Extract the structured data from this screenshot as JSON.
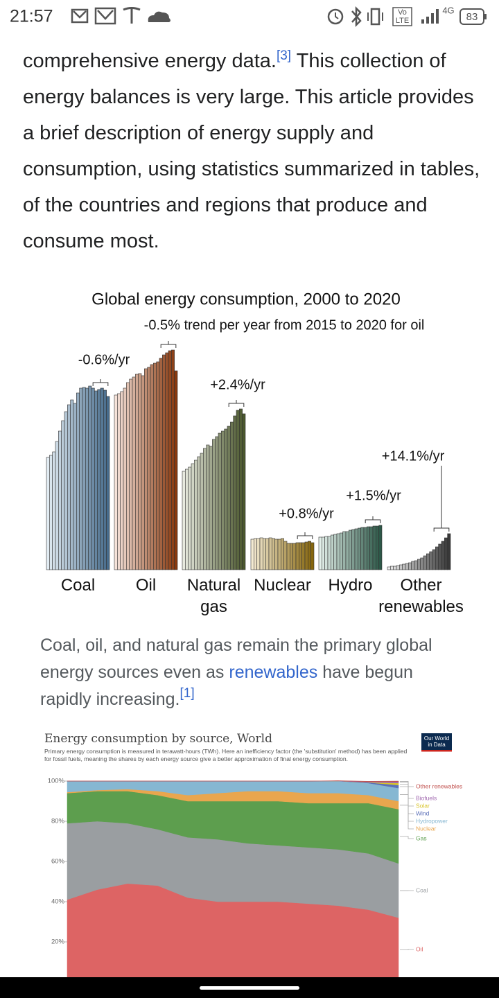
{
  "status_bar": {
    "time": "21:57",
    "volte": [
      "Vo",
      "LTE"
    ],
    "network": "4G",
    "battery": "83"
  },
  "article": {
    "before": "comprehensive energy data.",
    "ref": "[3]",
    "after": " This collection of energy balances is very large. This article provides a brief description of energy supply and consumption, using statistics summarized in tables, of the countries and regions that produce and consume most."
  },
  "caption": {
    "before": "Coal, oil, and natural gas remain the primary global energy sources even as ",
    "link": "renewables",
    "after": " have begun rapidly increasing.",
    "ref": "[1]"
  },
  "chart_data": [
    {
      "type": "bar",
      "title": "Global energy consumption, 2000 to 2020",
      "annotations": [
        "-0.6%/yr",
        "-0.5% trend per year from 2015 to 2020 for oil",
        "+2.4%/yr",
        "+0.8%/yr",
        "+1.5%/yr",
        "+14.1%/yr"
      ],
      "series": [
        {
          "name": "Coal",
          "colors": [
            "#e2ecf3",
            "#476c8c"
          ],
          "values": [
            162,
            165,
            170,
            185,
            200,
            215,
            228,
            238,
            245,
            240,
            255,
            262,
            263,
            262,
            265,
            262,
            258,
            260,
            262,
            259,
            250
          ]
        },
        {
          "name": "Oil",
          "colors": [
            "#f6e3da",
            "#87380e"
          ],
          "values": [
            252,
            254,
            257,
            262,
            270,
            275,
            278,
            282,
            283,
            280,
            290,
            292,
            296,
            298,
            300,
            305,
            310,
            313,
            316,
            317,
            287
          ]
        },
        {
          "name": "Natural gas",
          "colors": [
            "#e8eadf",
            "#4a572d"
          ],
          "values": [
            142,
            145,
            148,
            153,
            158,
            163,
            168,
            175,
            180,
            178,
            188,
            192,
            197,
            200,
            203,
            207,
            213,
            222,
            230,
            232,
            225
          ]
        },
        {
          "name": "Nuclear",
          "colors": [
            "#f3ead2",
            "#86660e"
          ],
          "values": [
            44,
            45,
            45,
            46,
            45,
            45,
            46,
            45,
            44,
            44,
            45,
            41,
            38,
            38,
            38,
            39,
            39,
            39,
            40,
            41,
            39
          ]
        },
        {
          "name": "Hydro",
          "colors": [
            "#e3f0ea",
            "#2d5848"
          ],
          "values": [
            47,
            47,
            48,
            48,
            50,
            51,
            52,
            53,
            55,
            55,
            57,
            58,
            59,
            60,
            61,
            61,
            62,
            62,
            63,
            63,
            64
          ]
        },
        {
          "name": "Other renewables",
          "colors": [
            "#ececec",
            "#383838"
          ],
          "values": [
            4,
            5,
            5,
            6,
            7,
            8,
            9,
            10,
            12,
            13,
            15,
            17,
            20,
            23,
            26,
            29,
            33,
            37,
            41,
            46,
            52
          ]
        }
      ]
    },
    {
      "type": "area",
      "stacked": true,
      "title": "Energy consumption by source, World",
      "subtitle": "Primary energy consumption is measured in terawatt-hours (TWh). Here an inefficiency factor (the 'substitution' method) has been applied for fossil fuels, meaning the shares by each energy source give a better approximation of final energy consumption.",
      "logo": [
        "Our World",
        "in Data"
      ],
      "categories": [
        null,
        null,
        null,
        null,
        null,
        null,
        null,
        null,
        null,
        null,
        null,
        null
      ],
      "ylim": [
        0,
        100
      ],
      "yticks": [
        {
          "value": 20,
          "label": "20%"
        },
        {
          "value": 40,
          "label": "40%"
        },
        {
          "value": 60,
          "label": "60%"
        },
        {
          "value": 80,
          "label": "80%"
        },
        {
          "value": 100,
          "label": "100%"
        }
      ],
      "series": [
        {
          "name": "Oil",
          "color": "#dd6464",
          "values": [
            41,
            46,
            49,
            48,
            42,
            40,
            40,
            40,
            39,
            38,
            36,
            32
          ]
        },
        {
          "name": "Coal",
          "color": "#9a9ea1",
          "values": [
            38,
            34,
            30,
            28,
            30,
            31,
            29,
            28,
            28,
            28,
            28,
            27
          ]
        },
        {
          "name": "Gas",
          "color": "#5d9e4e",
          "values": [
            15,
            15,
            16,
            17,
            18,
            19,
            21,
            22,
            22,
            23,
            25,
            27
          ]
        },
        {
          "name": "Nuclear",
          "color": "#e9a64e",
          "values": [
            0.5,
            0.5,
            1,
            2,
            3,
            4,
            5,
            5,
            5,
            5,
            4,
            4
          ]
        },
        {
          "name": "Hydropower",
          "color": "#86b7d2",
          "values": [
            5.5,
            4.5,
            4,
            5,
            7,
            6,
            5,
            5,
            6,
            6,
            6,
            6.5
          ]
        },
        {
          "name": "Wind",
          "color": "#5b70b8",
          "values": [
            0,
            0,
            0,
            0,
            0,
            0,
            0,
            0,
            0,
            0,
            0.3,
            1.5
          ]
        },
        {
          "name": "Solar",
          "color": "#d8c42a",
          "values": [
            0,
            0,
            0,
            0,
            0,
            0,
            0,
            0,
            0,
            0,
            0.1,
            1
          ]
        },
        {
          "name": "Biofuels",
          "color": "#a26ab0",
          "values": [
            0,
            0,
            0,
            0,
            0,
            0,
            0,
            0,
            0,
            0.1,
            0.3,
            0.7
          ]
        },
        {
          "name": "Other renewables",
          "color": "#c0504d",
          "values": [
            0,
            0,
            0,
            0,
            0,
            0,
            0,
            0,
            0,
            0.1,
            0.2,
            0.3
          ]
        }
      ]
    }
  ]
}
